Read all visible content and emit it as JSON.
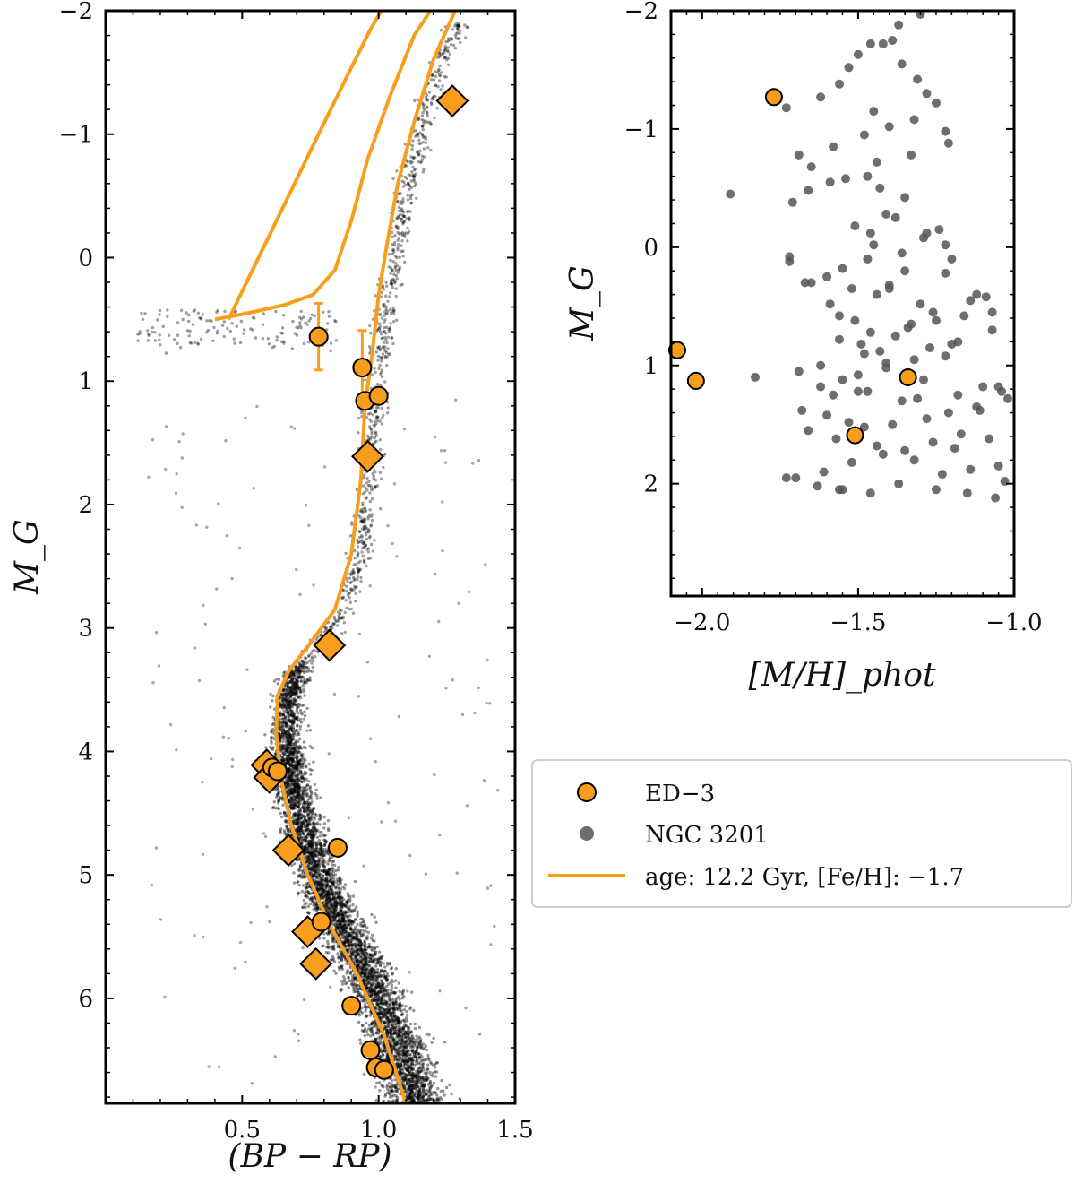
{
  "colors": {
    "ed3_fill": "#f89e1c",
    "iso_line": "#f89e1c",
    "ngc_fill": "#555555",
    "frame": "#000000",
    "legend_border": "#cccccc"
  },
  "legend": {
    "entries": [
      {
        "label": "ED−3",
        "kind": "circle"
      },
      {
        "label": "NGC 3201",
        "kind": "dot"
      },
      {
        "label": "age: 12.2 Gyr, [Fe/H]: −1.7",
        "kind": "line"
      }
    ],
    "placement": "right-center"
  },
  "chart_data": [
    {
      "type": "scatter",
      "name": "color-magnitude-diagram",
      "xlabel": "(BP − RP)",
      "ylabel": "M_G",
      "xlim": [
        0.0,
        1.5
      ],
      "ylim": [
        6.85,
        -2.0
      ],
      "xticks": [
        0.5,
        1.0,
        1.5
      ],
      "xtick_labels": [
        "0.5",
        "1.0",
        "1.5"
      ],
      "yticks": [
        -2,
        -1,
        0,
        1,
        2,
        3,
        4,
        5,
        6
      ],
      "ytick_labels": [
        "−2",
        "−1",
        "0",
        "1",
        "2",
        "3",
        "4",
        "5",
        "6"
      ],
      "series": [
        {
          "name": "age: 12.2 Gyr, [Fe/H]: −1.7",
          "kind": "isochrone",
          "x": [
            1.1,
            1.02,
            0.92,
            0.82,
            0.74,
            0.68,
            0.64,
            0.625,
            0.63,
            0.67,
            0.74,
            0.84,
            0.9,
            0.935,
            0.95,
            0.975,
            1.0,
            1.03,
            1.07,
            1.13,
            1.2,
            1.28,
            1.34
          ],
          "y": [
            6.85,
            6.3,
            5.8,
            5.4,
            5.0,
            4.6,
            4.2,
            3.85,
            3.55,
            3.35,
            3.15,
            2.85,
            2.4,
            1.8,
            1.2,
            0.8,
            0.3,
            -0.1,
            -0.6,
            -1.1,
            -1.6,
            -2.0,
            -2.2
          ]
        },
        {
          "name": "horizontal-branch",
          "kind": "isochrone",
          "x": [
            1.25,
            1.13,
            1.04,
            0.96,
            0.9,
            0.84,
            0.76,
            0.66,
            0.52,
            0.4
          ],
          "y": [
            -2.2,
            -1.8,
            -1.3,
            -0.8,
            -0.3,
            0.1,
            0.3,
            0.38,
            0.45,
            0.5
          ]
        },
        {
          "name": "agb-upper",
          "kind": "isochrone",
          "x": [
            0.45,
            0.56,
            0.67,
            0.78,
            0.88,
            0.97,
            1.05
          ],
          "y": [
            0.5,
            0.0,
            -0.5,
            -1.0,
            -1.45,
            -1.85,
            -2.15
          ]
        },
        {
          "name": "ED−3",
          "kind": "circle",
          "x": [
            0.78,
            0.94,
            0.95,
            1.0,
            0.61,
            0.63,
            0.85,
            0.79,
            0.9,
            0.97,
            0.99,
            1.02
          ],
          "y": [
            0.64,
            0.89,
            1.16,
            1.12,
            4.13,
            4.16,
            4.78,
            5.38,
            6.06,
            6.42,
            6.56,
            6.58
          ],
          "yerr": [
            0.27,
            0.3,
            0.06,
            0,
            0,
            0,
            0,
            0,
            0,
            0,
            0,
            0
          ]
        },
        {
          "name": "ED−3 diamonds",
          "kind": "diamond",
          "x": [
            1.27,
            0.96,
            0.82,
            0.59,
            0.6,
            0.67,
            0.74,
            0.77
          ],
          "y": [
            -1.27,
            1.61,
            3.14,
            4.11,
            4.21,
            4.8,
            5.46,
            5.72
          ]
        }
      ]
    },
    {
      "type": "scatter",
      "name": "metallicity-magnitude",
      "xlabel": "[M/H]_phot",
      "ylabel": "M_G",
      "xlim": [
        -2.1,
        -1.0
      ],
      "ylim": [
        2.95,
        -2.0
      ],
      "xticks": [
        -2.0,
        -1.5,
        -1.0
      ],
      "xtick_labels": [
        "−2.0",
        "−1.5",
        "−1.0"
      ],
      "yticks": [
        -2,
        -1,
        0,
        1,
        2
      ],
      "ytick_labels": [
        "−2",
        "−1",
        "0",
        "1",
        "2"
      ],
      "series": [
        {
          "name": "ED−3",
          "kind": "circle",
          "x": [
            -1.77,
            -2.08,
            -2.02,
            -1.34,
            -1.51
          ],
          "y": [
            -1.27,
            0.87,
            1.13,
            1.1,
            1.59
          ]
        },
        {
          "name": "NGC 3201",
          "kind": "dot",
          "x": [
            -1.3,
            -1.37,
            -1.42,
            -1.46,
            -1.5,
            -1.39,
            -1.53,
            -1.56,
            -1.62,
            -1.73,
            -1.36,
            -1.31,
            -1.28,
            -1.25,
            -1.22,
            -1.32,
            -1.45,
            -1.4,
            -1.48,
            -1.58,
            -1.69,
            -1.65,
            -1.54,
            -1.43,
            -1.35,
            -1.21,
            -1.33,
            -1.44,
            -1.47,
            -1.59,
            -1.66,
            -1.71,
            -1.91,
            -1.41,
            -1.51,
            -1.46,
            -1.38,
            -1.24,
            -1.29,
            -1.36,
            -1.47,
            -1.55,
            -1.6,
            -1.72,
            -1.45,
            -1.28,
            -1.22,
            -1.2,
            -1.35,
            -1.4,
            -1.52,
            -1.44,
            -1.3,
            -1.14,
            -1.09,
            -1.07,
            -1.16,
            -1.25,
            -1.34,
            -1.46,
            -1.56,
            -1.49,
            -1.38,
            -1.27,
            -1.22,
            -1.32,
            -1.41,
            -1.5,
            -1.55,
            -1.62,
            -1.58,
            -1.47,
            -1.36,
            -1.31,
            -1.18,
            -1.1,
            -1.04,
            -1.02,
            -1.12,
            -1.21,
            -1.28,
            -1.39,
            -1.48,
            -1.53,
            -1.6,
            -1.68,
            -1.66,
            -1.57,
            -1.44,
            -1.35,
            -1.26,
            -1.17,
            -1.08,
            -1.05,
            -1.14,
            -1.23,
            -1.32,
            -1.42,
            -1.52,
            -1.61,
            -1.7,
            -1.63,
            -1.55,
            -1.46,
            -1.37,
            -1.25,
            -1.15,
            -1.06,
            -1.03,
            -1.19,
            -1.29,
            -1.43,
            -1.51,
            -1.59,
            -1.67,
            -1.72,
            -1.65,
            -1.56,
            -1.4,
            -1.22,
            -1.12,
            -1.26,
            -1.33,
            -1.48,
            -1.62,
            -1.69,
            -1.83,
            -1.73,
            -1.56,
            -1.5,
            -1.41,
            -1.2,
            -1.11,
            -1.05,
            -1.07,
            -1.18
          ],
          "y": [
            -1.97,
            -1.88,
            -1.72,
            -1.72,
            -1.63,
            -1.75,
            -1.52,
            -1.38,
            -1.27,
            -1.18,
            -1.55,
            -1.42,
            -1.3,
            -1.22,
            -0.98,
            -1.08,
            -1.15,
            -1.02,
            -0.95,
            -0.85,
            -0.78,
            -0.68,
            -0.58,
            -0.5,
            -0.42,
            -0.88,
            -0.78,
            -0.72,
            -0.6,
            -0.55,
            -0.48,
            -0.38,
            -0.45,
            -0.28,
            -0.18,
            -0.12,
            -0.25,
            -0.15,
            -0.08,
            0.05,
            0.1,
            0.18,
            0.25,
            0.08,
            -0.02,
            -0.12,
            -0.02,
            0.1,
            0.2,
            0.32,
            0.35,
            0.4,
            0.48,
            0.45,
            0.42,
            0.55,
            0.58,
            0.62,
            0.68,
            0.72,
            0.78,
            0.82,
            0.75,
            0.85,
            0.92,
            0.95,
            1.02,
            1.08,
            1.12,
            1.18,
            1.25,
            1.22,
            1.3,
            1.28,
            1.25,
            1.18,
            1.22,
            1.28,
            1.35,
            1.4,
            1.45,
            1.5,
            1.52,
            1.48,
            1.42,
            1.38,
            1.55,
            1.62,
            1.68,
            1.72,
            1.65,
            1.58,
            1.62,
            1.85,
            1.88,
            1.92,
            1.8,
            1.75,
            1.82,
            1.9,
            1.95,
            2.02,
            2.05,
            2.08,
            2.0,
            2.05,
            2.08,
            2.12,
            1.98,
            1.7,
            1.12,
            0.88,
            0.62,
            0.48,
            0.3,
            0.12,
            0.3,
            0.58,
            0.35,
            0.22,
            0.4,
            0.55,
            0.65,
            0.9,
            1.0,
            1.05,
            1.1,
            1.95,
            2.05,
            1.22,
            0.98,
            0.82,
            1.38,
            1.18,
            0.7,
            0.8
          ]
        }
      ]
    }
  ]
}
